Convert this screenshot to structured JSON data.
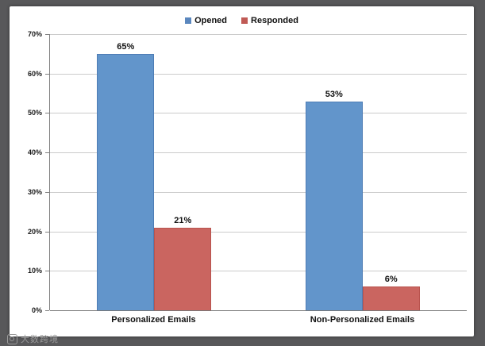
{
  "watermark": {
    "text": "大数跨境"
  },
  "frame_color": "#58585a",
  "chart_data": {
    "type": "bar",
    "title": "",
    "categories": [
      "Personalized Emails",
      "Non-Personalized Emails"
    ],
    "series": [
      {
        "name": "Opened",
        "color": "#6295cb",
        "values": [
          65,
          53
        ]
      },
      {
        "name": "Responded",
        "color": "#ca6560",
        "values": [
          21,
          6
        ]
      }
    ],
    "bar_labels": [
      [
        "65%",
        "53%"
      ],
      [
        "21%",
        "6%"
      ]
    ],
    "yticks": [
      "70%",
      "60%",
      "50%",
      "40%",
      "30%",
      "20%",
      "10%",
      "0%"
    ],
    "ylim": [
      0,
      70
    ],
    "xlabel": "",
    "ylabel": "",
    "grid": true,
    "gridline_color": "#cbcbcb",
    "axis_color": "#777777",
    "legend_position": "top"
  }
}
